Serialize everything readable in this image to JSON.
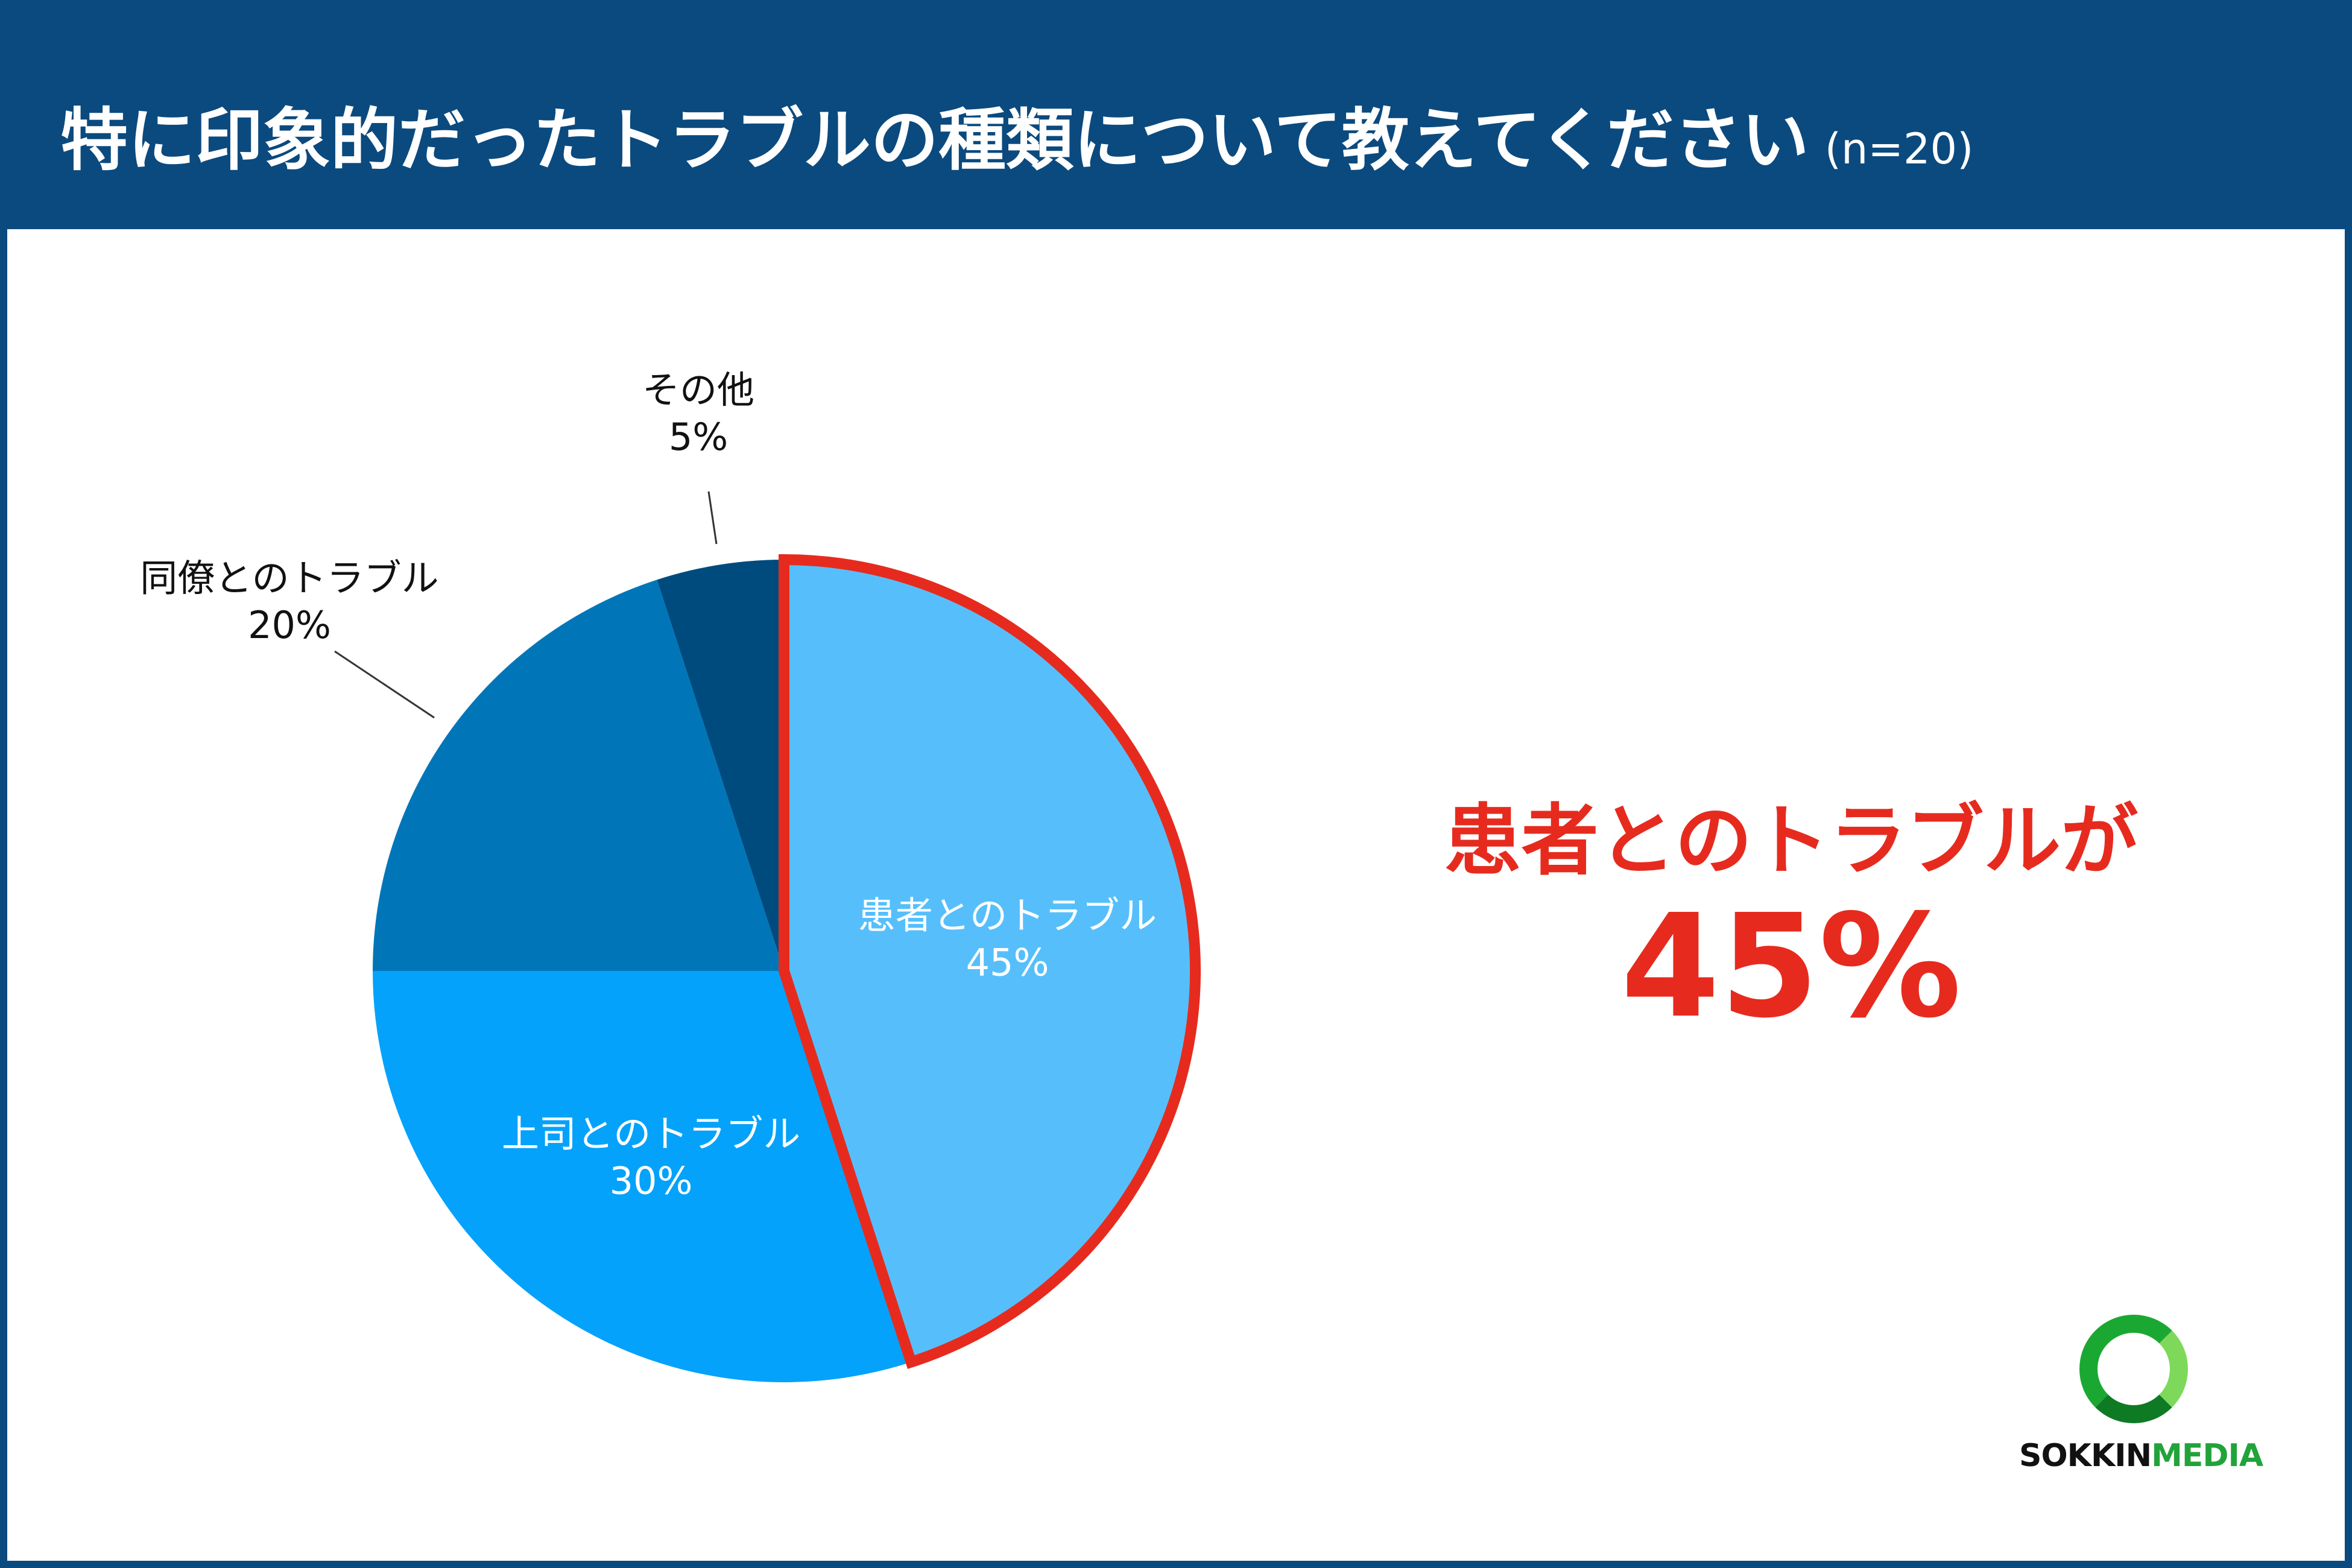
{
  "header": {
    "title": "特に印象的だったトラブルの種類について教えてください",
    "sample": "(n=20)"
  },
  "chart_data": {
    "type": "pie",
    "unit": "%",
    "start_angle": "12 o'clock",
    "direction": "clockwise",
    "slices": [
      {
        "label": "患者とのトラブル",
        "value": 45,
        "value_label": "45%",
        "color": "#56bffb",
        "highlighted": true,
        "label_inside": true,
        "label_color": "#ffffff"
      },
      {
        "label": "上司とのトラブル",
        "value": 30,
        "value_label": "30%",
        "color": "#04a2fb",
        "label_inside": true,
        "label_color": "#ffffff"
      },
      {
        "label": "同僚とのトラブル",
        "value": 20,
        "value_label": "20%",
        "color": "#0076b9",
        "label_inside": false,
        "label_color": "#111111"
      },
      {
        "label": "その他",
        "value": 5,
        "value_label": "5%",
        "color": "#004b7e",
        "label_inside": false,
        "label_color": "#111111"
      }
    ],
    "highlight_color": "#e62b1e"
  },
  "highlight": {
    "text": "患者とのトラブルが",
    "value": "45%"
  },
  "logo": {
    "text_part1": "SOKKIN",
    "text_part2": "MEDIA"
  },
  "colors": {
    "header_bg": "#0b4a7e",
    "accent_red": "#e62b1e",
    "logo_green": "#22a33a"
  }
}
